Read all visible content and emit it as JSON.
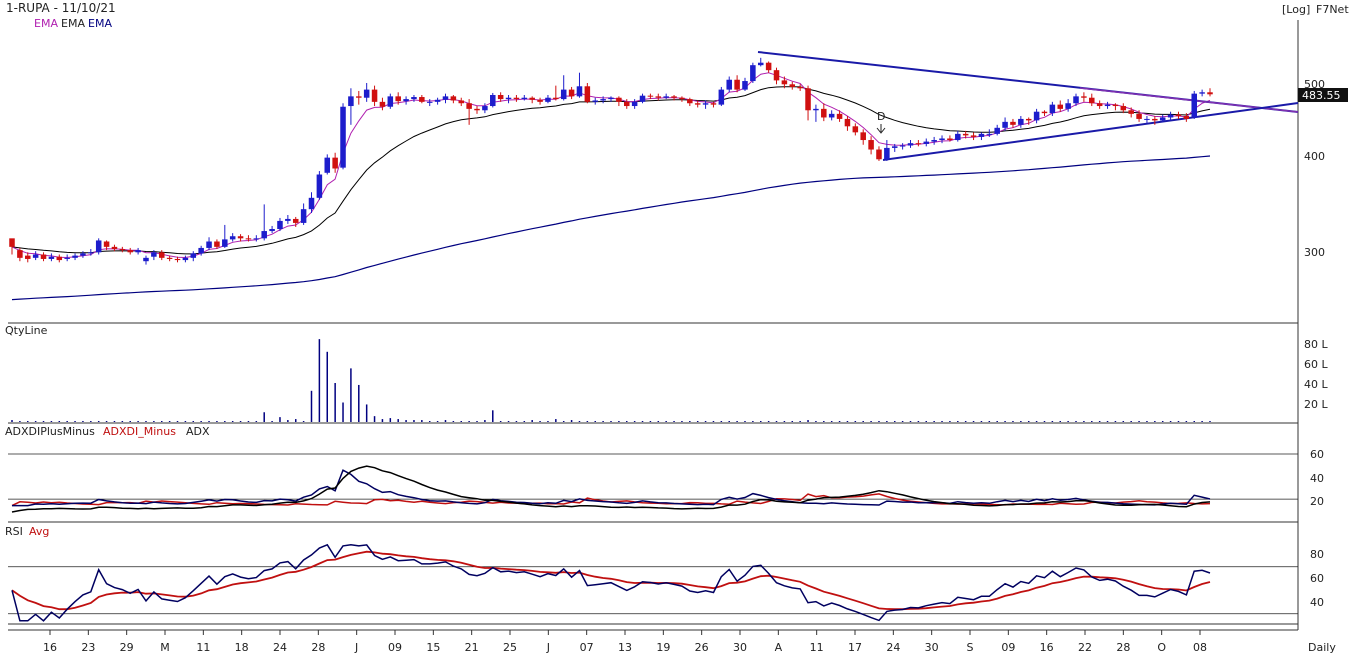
{
  "header": {
    "symbol": "1-RUPA - 11/10/21",
    "legend_items": [
      "EMA",
      "EMA",
      "EMA"
    ],
    "scale_label": "[Log]",
    "vendor": "F7Net"
  },
  "colors": {
    "up_candle": "#1d1dcc",
    "down_candle": "#d01010",
    "ema_short": "#b020b0",
    "ema_mid": "#000000",
    "ema_long": "#000080",
    "trendline": "#1a1aa8",
    "trendline_upper": "#8030b0",
    "volume_bar": "#000080",
    "adx_plus": "#000060",
    "adx_minus": "#c01010",
    "adx": "#000000",
    "rsi": "#000060",
    "rsi_avg": "#c01010",
    "panel_border": "#333333"
  },
  "panels": {
    "price": {
      "yticks": [
        "500",
        "400",
        "300"
      ],
      "last_price_label": "483.55",
      "annotation": "D"
    },
    "volume": {
      "title": "QtyLine",
      "yticks": [
        "80 L",
        "60 L",
        "40 L",
        "20 L"
      ]
    },
    "adx": {
      "title_plus": "ADXDIPlusMinus",
      "title_minus": "ADXDI_Minus",
      "title_adx": "ADX",
      "yticks": [
        "60",
        "40",
        "20"
      ]
    },
    "rsi": {
      "title": "RSI",
      "title_avg": "Avg",
      "yticks": [
        "80",
        "60",
        "40"
      ]
    }
  },
  "x_axis": {
    "labels": [
      "16",
      "23",
      "29",
      "M",
      "11",
      "18",
      "24",
      "28",
      "J",
      "09",
      "15",
      "21",
      "25",
      "J",
      "07",
      "13",
      "19",
      "26",
      "30",
      "A",
      "11",
      "17",
      "24",
      "30",
      "S",
      "09",
      "16",
      "22",
      "28",
      "O",
      "08"
    ],
    "period": "Daily"
  },
  "chart_data": {
    "type": "candlestick",
    "scale": "log",
    "ylim": [
      230,
      560
    ],
    "price_series": [
      [
        311,
        303,
        308,
        296
      ],
      [
        300,
        293,
        302,
        290
      ],
      [
        295,
        292,
        298,
        289
      ],
      [
        293,
        296,
        299,
        291
      ],
      [
        296,
        292,
        298,
        290
      ],
      [
        292,
        294,
        297,
        290
      ],
      [
        294,
        291,
        296,
        289
      ],
      [
        292,
        293,
        296,
        290
      ],
      [
        293,
        295,
        297,
        291
      ],
      [
        295,
        297,
        299,
        293
      ],
      [
        298,
        298,
        301,
        295
      ],
      [
        298,
        309,
        311,
        296
      ],
      [
        308,
        303,
        309,
        300
      ],
      [
        303,
        301,
        305,
        299
      ],
      [
        301,
        300,
        303,
        298
      ],
      [
        300,
        298,
        302,
        296
      ],
      [
        298,
        300,
        302,
        296
      ],
      [
        290,
        293,
        295,
        287
      ],
      [
        294,
        298,
        300,
        291
      ],
      [
        298,
        293,
        300,
        291
      ],
      [
        293,
        292,
        295,
        290
      ],
      [
        292,
        291,
        294,
        289
      ],
      [
        291,
        293,
        295,
        289
      ],
      [
        293,
        297,
        299,
        290
      ],
      [
        297,
        302,
        304,
        295
      ],
      [
        302,
        308,
        312,
        300
      ],
      [
        308,
        303,
        310,
        301
      ],
      [
        303,
        310,
        324,
        302
      ],
      [
        310,
        313,
        316,
        308
      ],
      [
        313,
        311,
        315,
        308
      ],
      [
        311,
        310,
        314,
        308
      ],
      [
        310,
        311,
        314,
        308
      ],
      [
        311,
        318,
        345,
        309
      ],
      [
        318,
        320,
        323,
        316
      ],
      [
        320,
        328,
        331,
        318
      ],
      [
        328,
        330,
        334,
        325
      ],
      [
        330,
        326,
        332,
        322
      ],
      [
        326,
        340,
        346,
        324
      ],
      [
        340,
        352,
        358,
        336
      ],
      [
        352,
        378,
        382,
        350
      ],
      [
        380,
        398,
        402,
        378
      ],
      [
        398,
        385,
        404,
        380
      ],
      [
        386,
        465,
        470,
        384
      ],
      [
        466,
        480,
        492,
        440
      ],
      [
        480,
        478,
        488,
        468
      ],
      [
        478,
        490,
        500,
        472
      ],
      [
        490,
        472,
        496,
        466
      ],
      [
        472,
        465,
        478,
        460
      ],
      [
        465,
        480,
        484,
        462
      ],
      [
        480,
        473,
        486,
        468
      ],
      [
        473,
        476,
        480,
        468
      ],
      [
        476,
        479,
        482,
        472
      ],
      [
        479,
        472,
        482,
        470
      ],
      [
        472,
        472,
        476,
        466
      ],
      [
        472,
        475,
        478,
        468
      ],
      [
        475,
        480,
        484,
        470
      ],
      [
        480,
        474,
        482,
        470
      ],
      [
        474,
        470,
        478,
        466
      ],
      [
        470,
        462,
        476,
        440
      ],
      [
        462,
        460,
        466,
        455
      ],
      [
        460,
        466,
        470,
        456
      ],
      [
        466,
        482,
        485,
        464
      ],
      [
        482,
        476,
        486,
        472
      ],
      [
        476,
        478,
        482,
        470
      ],
      [
        478,
        476,
        482,
        472
      ],
      [
        476,
        478,
        482,
        474
      ],
      [
        478,
        475,
        480,
        470
      ],
      [
        475,
        472,
        478,
        468
      ],
      [
        472,
        478,
        482,
        470
      ],
      [
        478,
        476,
        496,
        474
      ],
      [
        476,
        490,
        512,
        474
      ],
      [
        490,
        480,
        494,
        476
      ],
      [
        480,
        495,
        516,
        478
      ],
      [
        495,
        472,
        500,
        470
      ],
      [
        472,
        474,
        478,
        468
      ],
      [
        474,
        476,
        480,
        470
      ],
      [
        476,
        478,
        480,
        472
      ],
      [
        478,
        472,
        480,
        466
      ],
      [
        472,
        466,
        476,
        462
      ],
      [
        466,
        472,
        476,
        462
      ],
      [
        472,
        481,
        484,
        470
      ],
      [
        481,
        480,
        484,
        476
      ],
      [
        480,
        478,
        484,
        474
      ],
      [
        478,
        480,
        484,
        476
      ],
      [
        480,
        478,
        482,
        474
      ],
      [
        478,
        476,
        480,
        472
      ],
      [
        476,
        470,
        478,
        466
      ],
      [
        470,
        468,
        474,
        464
      ],
      [
        468,
        470,
        474,
        462
      ],
      [
        470,
        468,
        472,
        464
      ],
      [
        468,
        490,
        494,
        466
      ],
      [
        490,
        505,
        510,
        486
      ],
      [
        505,
        490,
        512,
        486
      ],
      [
        490,
        503,
        508,
        488
      ],
      [
        503,
        528,
        532,
        500
      ],
      [
        528,
        532,
        540,
        526
      ],
      [
        532,
        520,
        534,
        516
      ],
      [
        520,
        504,
        524,
        498
      ],
      [
        504,
        498,
        510,
        492
      ],
      [
        498,
        494,
        502,
        490
      ],
      [
        494,
        492,
        498,
        488
      ],
      [
        492,
        460,
        496,
        446
      ],
      [
        460,
        462,
        468,
        444
      ],
      [
        462,
        450,
        470,
        445
      ],
      [
        450,
        455,
        460,
        446
      ],
      [
        455,
        448,
        460,
        444
      ],
      [
        448,
        438,
        452,
        432
      ],
      [
        438,
        430,
        442,
        426
      ],
      [
        430,
        420,
        434,
        414
      ],
      [
        420,
        408,
        425,
        402
      ],
      [
        408,
        396,
        412,
        394
      ],
      [
        396,
        410,
        420,
        394
      ],
      [
        410,
        412,
        415,
        405
      ],
      [
        412,
        413,
        416,
        408
      ],
      [
        413,
        416,
        420,
        410
      ],
      [
        416,
        415,
        420,
        412
      ],
      [
        415,
        418,
        422,
        412
      ],
      [
        418,
        420,
        424,
        414
      ],
      [
        420,
        422,
        426,
        416
      ],
      [
        422,
        420,
        426,
        418
      ],
      [
        420,
        428,
        432,
        418
      ],
      [
        428,
        426,
        432,
        422
      ],
      [
        426,
        424,
        430,
        420
      ],
      [
        424,
        428,
        430,
        420
      ],
      [
        428,
        428,
        434,
        424
      ],
      [
        428,
        436,
        440,
        426
      ],
      [
        436,
        444,
        450,
        432
      ],
      [
        444,
        440,
        448,
        436
      ],
      [
        440,
        448,
        452,
        436
      ],
      [
        448,
        446,
        450,
        440
      ],
      [
        446,
        458,
        462,
        442
      ],
      [
        458,
        456,
        460,
        452
      ],
      [
        456,
        468,
        472,
        452
      ],
      [
        468,
        462,
        474,
        458
      ],
      [
        462,
        470,
        476,
        458
      ],
      [
        470,
        480,
        484,
        466
      ],
      [
        480,
        478,
        486,
        472
      ],
      [
        478,
        470,
        484,
        466
      ],
      [
        470,
        466,
        474,
        462
      ],
      [
        466,
        468,
        472,
        462
      ],
      [
        468,
        466,
        470,
        460
      ],
      [
        466,
        460,
        470,
        456
      ],
      [
        460,
        455,
        464,
        450
      ],
      [
        455,
        448,
        460,
        444
      ],
      [
        448,
        448,
        452,
        442
      ],
      [
        448,
        446,
        452,
        440
      ],
      [
        446,
        450,
        454,
        444
      ],
      [
        450,
        454,
        458,
        446
      ],
      [
        454,
        452,
        458,
        448
      ],
      [
        452,
        448,
        456,
        444
      ],
      [
        450,
        484,
        488,
        448
      ],
      [
        484,
        486,
        490,
        480
      ],
      [
        486,
        483,
        492,
        480
      ]
    ],
    "volume_lakh": [
      2,
      1,
      1,
      1,
      1,
      1,
      1,
      1,
      1,
      1,
      1,
      1,
      1,
      1,
      1,
      1,
      1,
      1,
      1,
      1,
      1,
      1,
      1,
      1,
      1,
      1,
      1,
      1,
      1,
      1,
      1,
      1,
      10,
      1,
      5,
      2,
      3,
      1,
      32,
      85,
      72,
      40,
      20,
      55,
      38,
      18,
      6,
      3,
      4,
      3,
      2,
      2,
      2,
      1,
      1,
      2,
      1,
      1,
      1,
      1,
      2,
      12,
      1,
      1,
      1,
      1,
      2,
      1,
      1,
      3,
      1,
      2,
      1,
      1,
      1,
      1,
      1,
      1,
      1,
      1,
      1,
      1,
      1,
      1,
      1,
      1,
      1,
      1,
      1,
      1,
      1,
      1,
      1,
      1,
      1,
      1,
      1,
      1,
      1,
      1,
      1,
      2,
      1,
      1,
      1,
      1,
      1,
      1,
      1,
      1,
      1,
      1,
      1,
      1,
      1,
      1,
      1,
      1,
      1,
      1,
      1,
      1,
      1,
      1,
      1,
      1,
      1,
      1,
      1,
      1,
      1,
      1,
      1,
      1,
      1,
      1,
      1,
      1,
      1,
      1,
      1,
      1,
      1,
      1,
      1,
      1,
      1,
      1,
      1,
      1,
      1,
      1,
      1,
      1,
      1,
      1,
      1
    ],
    "adx_levels": [
      25,
      60
    ],
    "rsi_levels": [
      30,
      70
    ],
    "rsi_ylim": [
      20,
      95
    ],
    "adx_ylim": [
      0,
      75
    ]
  }
}
